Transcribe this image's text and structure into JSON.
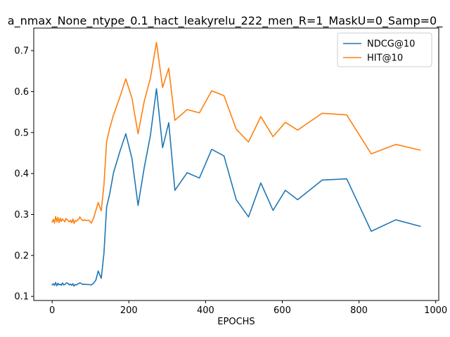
{
  "chart_data": {
    "type": "line",
    "title": "a_nmax_None_ntype_0.1_hact_leakyrelu_222_men_R=1_MaskU=0_Samp=0_",
    "xlabel": "EPOCHS",
    "ylabel": "",
    "xlim": [
      -48,
      1008
    ],
    "ylim": [
      0.09,
      0.755
    ],
    "xticks": [
      0,
      200,
      400,
      600,
      800,
      1000
    ],
    "yticks": [
      0.1,
      0.2,
      0.3,
      0.4,
      0.5,
      0.6,
      0.7
    ],
    "xtick_labels": [
      "0",
      "200",
      "400",
      "600",
      "800",
      "1000"
    ],
    "ytick_labels": [
      "0.1",
      "0.2",
      "0.3",
      "0.4",
      "0.5",
      "0.6",
      "0.7"
    ],
    "grid": false,
    "legend_position": "top-right",
    "series": [
      {
        "name": "NDCG@10",
        "color": "#1f77b4",
        "points": [
          [
            0,
            0.128
          ],
          [
            3,
            0.131
          ],
          [
            6,
            0.127
          ],
          [
            9,
            0.134
          ],
          [
            12,
            0.126
          ],
          [
            15,
            0.132
          ],
          [
            18,
            0.128
          ],
          [
            21,
            0.13
          ],
          [
            24,
            0.127
          ],
          [
            27,
            0.133
          ],
          [
            30,
            0.128
          ],
          [
            33,
            0.129
          ],
          [
            36,
            0.132
          ],
          [
            39,
            0.133
          ],
          [
            42,
            0.131
          ],
          [
            45,
            0.128
          ],
          [
            48,
            0.13
          ],
          [
            51,
            0.127
          ],
          [
            54,
            0.131
          ],
          [
            57,
            0.125
          ],
          [
            60,
            0.129
          ],
          [
            63,
            0.128
          ],
          [
            66,
            0.13
          ],
          [
            69,
            0.131
          ],
          [
            72,
            0.133
          ],
          [
            75,
            0.132
          ],
          [
            78,
            0.13
          ],
          [
            81,
            0.129
          ],
          [
            84,
            0.13
          ],
          [
            90,
            0.129
          ],
          [
            96,
            0.129
          ],
          [
            102,
            0.128
          ],
          [
            108,
            0.132
          ],
          [
            114,
            0.14
          ],
          [
            120,
            0.162
          ],
          [
            128,
            0.144
          ],
          [
            135,
            0.205
          ],
          [
            142,
            0.318
          ],
          [
            150,
            0.35
          ],
          [
            160,
            0.402
          ],
          [
            176,
            0.452
          ],
          [
            192,
            0.497
          ],
          [
            208,
            0.437
          ],
          [
            224,
            0.322
          ],
          [
            240,
            0.414
          ],
          [
            256,
            0.492
          ],
          [
            272,
            0.607
          ],
          [
            288,
            0.463
          ],
          [
            304,
            0.524
          ],
          [
            320,
            0.359
          ],
          [
            352,
            0.402
          ],
          [
            384,
            0.389
          ],
          [
            416,
            0.459
          ],
          [
            448,
            0.443
          ],
          [
            480,
            0.336
          ],
          [
            512,
            0.294
          ],
          [
            544,
            0.377
          ],
          [
            576,
            0.31
          ],
          [
            608,
            0.359
          ],
          [
            640,
            0.336
          ],
          [
            704,
            0.384
          ],
          [
            768,
            0.387
          ],
          [
            832,
            0.259
          ],
          [
            896,
            0.287
          ],
          [
            960,
            0.271
          ]
        ]
      },
      {
        "name": "HIT@10",
        "color": "#ff7f0e",
        "points": [
          [
            0,
            0.281
          ],
          [
            3,
            0.288
          ],
          [
            6,
            0.279
          ],
          [
            9,
            0.295
          ],
          [
            12,
            0.282
          ],
          [
            15,
            0.293
          ],
          [
            18,
            0.28
          ],
          [
            21,
            0.291
          ],
          [
            24,
            0.283
          ],
          [
            27,
            0.289
          ],
          [
            30,
            0.286
          ],
          [
            33,
            0.282
          ],
          [
            36,
            0.29
          ],
          [
            39,
            0.288
          ],
          [
            42,
            0.284
          ],
          [
            45,
            0.282
          ],
          [
            48,
            0.286
          ],
          [
            51,
            0.28
          ],
          [
            54,
            0.289
          ],
          [
            57,
            0.278
          ],
          [
            60,
            0.285
          ],
          [
            63,
            0.283
          ],
          [
            66,
            0.287
          ],
          [
            69,
            0.288
          ],
          [
            72,
            0.294
          ],
          [
            75,
            0.29
          ],
          [
            78,
            0.286
          ],
          [
            81,
            0.285
          ],
          [
            84,
            0.287
          ],
          [
            90,
            0.285
          ],
          [
            96,
            0.286
          ],
          [
            102,
            0.279
          ],
          [
            108,
            0.291
          ],
          [
            114,
            0.31
          ],
          [
            120,
            0.329
          ],
          [
            128,
            0.309
          ],
          [
            135,
            0.372
          ],
          [
            142,
            0.478
          ],
          [
            150,
            0.51
          ],
          [
            160,
            0.543
          ],
          [
            176,
            0.585
          ],
          [
            192,
            0.631
          ],
          [
            208,
            0.584
          ],
          [
            224,
            0.497
          ],
          [
            240,
            0.576
          ],
          [
            256,
            0.632
          ],
          [
            272,
            0.72
          ],
          [
            288,
            0.61
          ],
          [
            304,
            0.657
          ],
          [
            320,
            0.53
          ],
          [
            352,
            0.556
          ],
          [
            384,
            0.548
          ],
          [
            416,
            0.602
          ],
          [
            448,
            0.59
          ],
          [
            480,
            0.508
          ],
          [
            512,
            0.477
          ],
          [
            544,
            0.539
          ],
          [
            576,
            0.49
          ],
          [
            608,
            0.525
          ],
          [
            640,
            0.506
          ],
          [
            704,
            0.547
          ],
          [
            768,
            0.543
          ],
          [
            832,
            0.448
          ],
          [
            896,
            0.471
          ],
          [
            960,
            0.457
          ]
        ]
      }
    ]
  }
}
